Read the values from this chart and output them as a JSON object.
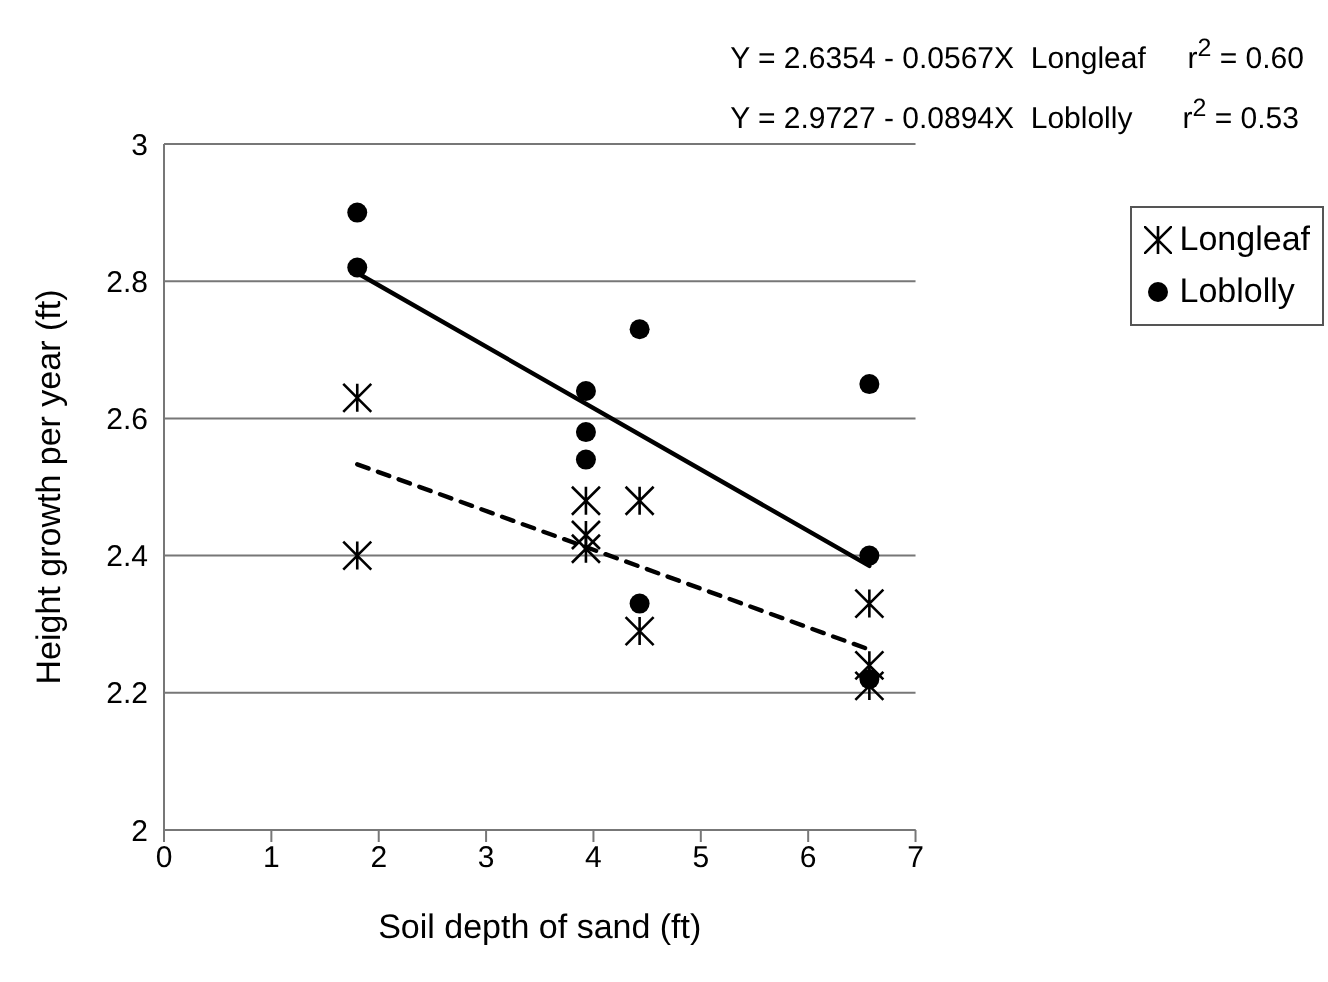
{
  "chart_data": {
    "type": "scatter",
    "annotations": [
      "Y = 2.6354 - 0.0567X  Longleaf     r$^{2}$ = 0.60",
      "Y = 2.9727 - 0.0894X  Loblolly      r$^{2}$ = 0.53"
    ],
    "xlabel": "Soil depth of sand (ft)",
    "ylabel": "Height growth per year (ft)",
    "series": [
      {
        "name": "Longleaf",
        "color": "#000000",
        "marker": "cross",
        "x": [
          1.8,
          1.8,
          3.93,
          3.93,
          3.93,
          4.43,
          4.43,
          6.57,
          6.57,
          6.57
        ],
        "values": [
          2.63,
          2.4,
          2.48,
          2.43,
          2.41,
          2.48,
          2.29,
          2.33,
          2.24,
          2.21
        ]
      },
      {
        "name": "Loblolly",
        "color": "#000000",
        "marker": "circle",
        "x": [
          1.8,
          1.8,
          3.93,
          3.93,
          3.93,
          4.43,
          4.43,
          6.57,
          6.57,
          6.57
        ],
        "values": [
          2.9,
          2.82,
          2.64,
          2.58,
          2.54,
          2.73,
          2.33,
          2.65,
          2.4,
          2.22
        ]
      },
      {
        "type": "line",
        "color": "#000000",
        "line_style": "dashed",
        "marker": "none",
        "x": [
          1.8,
          6.57
        ],
        "values": [
          2.533,
          2.263
        ]
      },
      {
        "type": "line",
        "color": "#000000",
        "line_style": "solid",
        "marker": "none",
        "x": [
          1.8,
          6.57
        ],
        "values": [
          2.812,
          2.385
        ]
      }
    ],
    "xlim": [
      0,
      7
    ],
    "xticks": [
      0,
      1,
      2,
      3,
      4,
      5,
      6,
      7
    ],
    "ylim": [
      2,
      3
    ],
    "yticks": [
      2,
      2.2,
      2.4,
      2.6,
      2.8,
      3
    ],
    "grid": "y",
    "legend": "top right"
  }
}
